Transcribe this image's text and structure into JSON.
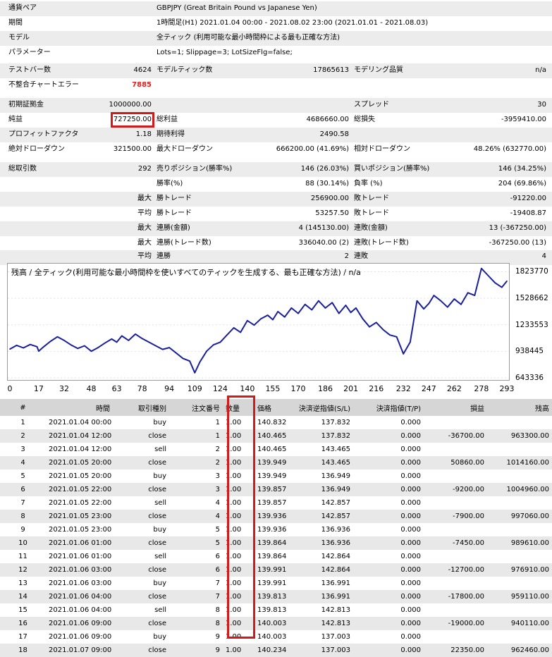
{
  "settings": {
    "symbol_label": "通貨ペア",
    "symbol_value": "GBPJPY (Great Britain Pound vs Japanese Yen)",
    "period_label": "期間",
    "period_value": "1時間足(H1) 2021.01.04 00:00 - 2021.08.02 23:00 (2021.01.01 - 2021.08.03)",
    "model_label": "モデル",
    "model_value": "全ティック (利用可能な最小時間枠による最も正確な方法)",
    "params_label": "パラメーター",
    "params_value": "Lots=1; Slippage=3; LotSizeFlg=false;"
  },
  "quality": {
    "bars_label": "テストバー数",
    "bars_value": "4624",
    "ticks_label": "モデルティック数",
    "ticks_value": "17865613",
    "mq_label": "モデリング品質",
    "mq_value": "n/a",
    "err_label": "不整合チャートエラー",
    "err_value": "7885"
  },
  "results": {
    "deposit_label": "初期証拠金",
    "deposit_value": "1000000.00",
    "spread_label": "スプレッド",
    "spread_value": "30",
    "net_label": "純益",
    "net_value": "727250.00",
    "gross_profit_label": "総利益",
    "gross_profit_value": "4686660.00",
    "gross_loss_label": "総損失",
    "gross_loss_value": "-3959410.00",
    "pf_label": "プロフィットファクタ",
    "pf_value": "1.18",
    "payoff_label": "期待利得",
    "payoff_value": "2490.58",
    "abs_dd_label": "絶対ドローダウン",
    "abs_dd_value": "321500.00",
    "max_dd_label": "最大ドローダウン",
    "max_dd_value": "666200.00 (41.69%)",
    "rel_dd_label": "相対ドローダウン",
    "rel_dd_value": "48.26% (632770.00)",
    "trades_label": "総取引数",
    "trades_value": "292",
    "short_label": "売りポジション(勝率%)",
    "short_value": "146 (26.03%)",
    "long_label": "買いポジション(勝率%)",
    "long_value": "146 (34.25%)",
    "win_label": "勝率(%)",
    "win_value": "88 (30.14%)",
    "loss_label": "負率 (%)",
    "loss_value": "204 (69.86%)",
    "max_word": "最大",
    "avg_word": "平均",
    "max_win_label": "勝トレード",
    "max_win_value": "256900.00",
    "max_loss_label": "敗トレード",
    "max_loss_value": "-91220.00",
    "avg_win_label": "勝トレード",
    "avg_win_value": "53257.50",
    "avg_loss_label": "敗トレード",
    "avg_loss_value": "-19408.87",
    "cons_wins_amt_label": "連勝(金額)",
    "cons_wins_amt_value": "4 (145130.00)",
    "cons_loss_amt_label": "連敗(金額)",
    "cons_loss_amt_value": "13 (-367250.00)",
    "cons_profit_label": "連勝(トレード数)",
    "cons_profit_value": "336040.00 (2)",
    "cons_lossv_label": "連敗(トレード数)",
    "cons_lossv_value": "-367250.00 (13)",
    "avg_cons_win_label": "連勝",
    "avg_cons_win_value": "2",
    "avg_cons_loss_label": "連敗",
    "avg_cons_loss_value": "4"
  },
  "chart_data": {
    "type": "line",
    "title": "残高 / 全ティック(利用可能な最小時間枠を使いすべてのティックを生成する、最も正確な方法) / n/a",
    "x_ticks": [
      "0",
      "17",
      "32",
      "48",
      "63",
      "78",
      "94",
      "109",
      "124",
      "140",
      "155",
      "170",
      "186",
      "201",
      "216",
      "232",
      "247",
      "262",
      "278",
      "293"
    ],
    "y_ticks": [
      "1823770",
      "1528662",
      "1233553",
      "938445",
      "643336"
    ],
    "xlim": [
      0,
      293
    ],
    "ylim": [
      643336,
      1890000
    ],
    "line_color": "#1a1f9c",
    "x": [
      0,
      4,
      8,
      12,
      16,
      17,
      20,
      24,
      28,
      32,
      36,
      40,
      44,
      48,
      52,
      56,
      60,
      63,
      66,
      70,
      74,
      78,
      82,
      86,
      90,
      94,
      98,
      102,
      106,
      109,
      112,
      116,
      120,
      124,
      128,
      132,
      136,
      140,
      144,
      148,
      152,
      155,
      158,
      162,
      166,
      170,
      174,
      178,
      182,
      186,
      190,
      194,
      198,
      201,
      204,
      208,
      212,
      216,
      220,
      224,
      228,
      232,
      236,
      240,
      244,
      247,
      250,
      254,
      258,
      262,
      266,
      270,
      274,
      278,
      282,
      286,
      290,
      293
    ],
    "y": [
      963300,
      1004960,
      976910,
      1014160,
      989610,
      940110,
      990000,
      1050000,
      1100000,
      1060000,
      1010000,
      970000,
      1000000,
      940000,
      980000,
      1030000,
      1075000,
      1040000,
      1110000,
      1060000,
      1130000,
      1080000,
      1040000,
      1000000,
      960000,
      980000,
      920000,
      860000,
      830000,
      700000,
      820000,
      940000,
      1010000,
      1040000,
      1120000,
      1200000,
      1150000,
      1280000,
      1230000,
      1300000,
      1340000,
      1290000,
      1380000,
      1320000,
      1420000,
      1360000,
      1460000,
      1400000,
      1500000,
      1420000,
      1480000,
      1360000,
      1450000,
      1370000,
      1420000,
      1300000,
      1210000,
      1260000,
      1180000,
      1120000,
      1100000,
      910000,
      1040000,
      1500000,
      1410000,
      1470000,
      1560000,
      1500000,
      1430000,
      1520000,
      1460000,
      1590000,
      1560000,
      1860000,
      1780000,
      1700000,
      1650000,
      1720000
    ]
  },
  "table": {
    "columns": [
      "#",
      "時間",
      "取引種別",
      "注文番号",
      "数量",
      "価格",
      "決済逆指値(S/L)",
      "決済指値(T/P)",
      "損益",
      "残高"
    ],
    "rows": [
      [
        "1",
        "2021.01.04 00:00",
        "buy",
        "1",
        "1.00",
        "140.832",
        "137.832",
        "0.000",
        "",
        ""
      ],
      [
        "2",
        "2021.01.04 12:00",
        "close",
        "1",
        "1.00",
        "140.465",
        "137.832",
        "0.000",
        "-36700.00",
        "963300.00"
      ],
      [
        "3",
        "2021.01.04 12:00",
        "sell",
        "2",
        "1.00",
        "140.465",
        "143.465",
        "0.000",
        "",
        ""
      ],
      [
        "4",
        "2021.01.05 20:00",
        "close",
        "2",
        "1.00",
        "139.949",
        "143.465",
        "0.000",
        "50860.00",
        "1014160.00"
      ],
      [
        "5",
        "2021.01.05 20:00",
        "buy",
        "3",
        "1.00",
        "139.949",
        "136.949",
        "0.000",
        "",
        ""
      ],
      [
        "6",
        "2021.01.05 22:00",
        "close",
        "3",
        "1.00",
        "139.857",
        "136.949",
        "0.000",
        "-9200.00",
        "1004960.00"
      ],
      [
        "7",
        "2021.01.05 22:00",
        "sell",
        "4",
        "1.00",
        "139.857",
        "142.857",
        "0.000",
        "",
        ""
      ],
      [
        "8",
        "2021.01.05 23:00",
        "close",
        "4",
        "1.00",
        "139.936",
        "142.857",
        "0.000",
        "-7900.00",
        "997060.00"
      ],
      [
        "9",
        "2021.01.05 23:00",
        "buy",
        "5",
        "1.00",
        "139.936",
        "136.936",
        "0.000",
        "",
        ""
      ],
      [
        "10",
        "2021.01.06 01:00",
        "close",
        "5",
        "1.00",
        "139.864",
        "136.936",
        "0.000",
        "-7450.00",
        "989610.00"
      ],
      [
        "11",
        "2021.01.06 01:00",
        "sell",
        "6",
        "1.00",
        "139.864",
        "142.864",
        "0.000",
        "",
        ""
      ],
      [
        "12",
        "2021.01.06 03:00",
        "close",
        "6",
        "1.00",
        "139.991",
        "142.864",
        "0.000",
        "-12700.00",
        "976910.00"
      ],
      [
        "13",
        "2021.01.06 03:00",
        "buy",
        "7",
        "1.00",
        "139.991",
        "136.991",
        "0.000",
        "",
        ""
      ],
      [
        "14",
        "2021.01.06 04:00",
        "close",
        "7",
        "1.00",
        "139.813",
        "136.991",
        "0.000",
        "-17800.00",
        "959110.00"
      ],
      [
        "15",
        "2021.01.06 04:00",
        "sell",
        "8",
        "1.00",
        "139.813",
        "142.813",
        "0.000",
        "",
        ""
      ],
      [
        "16",
        "2021.01.06 09:00",
        "close",
        "8",
        "1.00",
        "140.003",
        "142.813",
        "0.000",
        "-19000.00",
        "940110.00"
      ],
      [
        "17",
        "2021.01.06 09:00",
        "buy",
        "9",
        "1.00",
        "140.003",
        "137.003",
        "0.000",
        "",
        ""
      ],
      [
        "18",
        "2021.01.07 09:00",
        "close",
        "9",
        "1.00",
        "140.234",
        "137.003",
        "0.000",
        "22350.00",
        "962460.00"
      ]
    ]
  }
}
